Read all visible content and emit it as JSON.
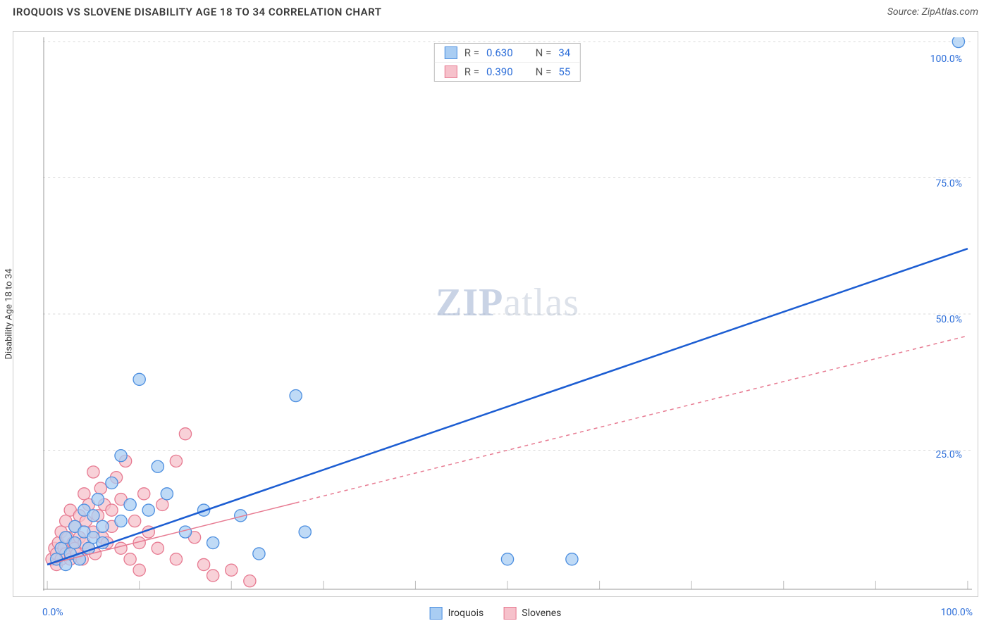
{
  "header": {
    "title": "IROQUOIS VS SLOVENE DISABILITY AGE 18 TO 34 CORRELATION CHART",
    "source": "Source: ZipAtlas.com"
  },
  "ylabel": "Disability Age 18 to 34",
  "watermark_zip": "ZIP",
  "watermark_atlas": "atlas",
  "chart": {
    "type": "scatter",
    "xlim": [
      0,
      100
    ],
    "ylim": [
      0,
      100
    ],
    "x_ticks": [
      0,
      50,
      100
    ],
    "y_ticks": [
      25,
      50,
      75,
      100
    ],
    "y_tick_labels": [
      "25.0%",
      "50.0%",
      "75.0%",
      "100.0%"
    ],
    "x_tick_labels": [
      "0.0%",
      "100.0%"
    ],
    "grid_color": "#d8d8d8",
    "axis_tick_color": "#bdbdbd",
    "background_color": "#ffffff",
    "series": [
      {
        "name": "Iroquois",
        "R": "0.630",
        "N": "34",
        "color_fill": "#a9cdf3",
        "color_stroke": "#4d8fe0",
        "trend_color": "#1c5dd2",
        "trend_width": 2.5,
        "trend_dash": "none",
        "trend": {
          "x1": 0,
          "y1": 4,
          "x2": 100,
          "y2": 62
        },
        "points": [
          [
            1,
            5
          ],
          [
            1.5,
            7
          ],
          [
            2,
            4
          ],
          [
            2,
            9
          ],
          [
            2.5,
            6
          ],
          [
            3,
            8
          ],
          [
            3,
            11
          ],
          [
            3.5,
            5
          ],
          [
            4,
            10
          ],
          [
            4,
            14
          ],
          [
            4.5,
            7
          ],
          [
            5,
            13
          ],
          [
            5,
            9
          ],
          [
            5.5,
            16
          ],
          [
            6,
            11
          ],
          [
            6,
            8
          ],
          [
            7,
            19
          ],
          [
            8,
            24
          ],
          [
            8,
            12
          ],
          [
            9,
            15
          ],
          [
            10,
            38
          ],
          [
            11,
            14
          ],
          [
            12,
            22
          ],
          [
            13,
            17
          ],
          [
            15,
            10
          ],
          [
            17,
            14
          ],
          [
            18,
            8
          ],
          [
            21,
            13
          ],
          [
            23,
            6
          ],
          [
            27,
            35
          ],
          [
            28,
            10
          ],
          [
            50,
            5
          ],
          [
            57,
            5
          ],
          [
            99,
            100
          ]
        ]
      },
      {
        "name": "Slovenes",
        "R": "0.390",
        "N": "55",
        "color_fill": "#f6c1cb",
        "color_stroke": "#e77b92",
        "trend_color": "#e77b92",
        "trend_width": 1.5,
        "trend_dash": "5,5",
        "trend_solid_until": 27,
        "trend": {
          "x1": 0,
          "y1": 4,
          "x2": 100,
          "y2": 46
        },
        "points": [
          [
            0.5,
            5
          ],
          [
            0.8,
            7
          ],
          [
            1,
            4
          ],
          [
            1,
            6
          ],
          [
            1.2,
            8
          ],
          [
            1.5,
            5
          ],
          [
            1.5,
            10
          ],
          [
            1.8,
            7
          ],
          [
            2,
            6
          ],
          [
            2,
            12
          ],
          [
            2.2,
            9
          ],
          [
            2.5,
            5
          ],
          [
            2.5,
            14
          ],
          [
            2.8,
            8
          ],
          [
            3,
            11
          ],
          [
            3,
            7
          ],
          [
            3.2,
            6
          ],
          [
            3.5,
            13
          ],
          [
            3.5,
            9
          ],
          [
            3.8,
            5
          ],
          [
            4,
            8
          ],
          [
            4,
            17
          ],
          [
            4.2,
            12
          ],
          [
            4.5,
            7
          ],
          [
            4.5,
            15
          ],
          [
            5,
            10
          ],
          [
            5,
            21
          ],
          [
            5.2,
            6
          ],
          [
            5.5,
            13
          ],
          [
            5.8,
            18
          ],
          [
            6,
            9
          ],
          [
            6.2,
            15
          ],
          [
            6.5,
            8
          ],
          [
            7,
            14
          ],
          [
            7,
            11
          ],
          [
            7.5,
            20
          ],
          [
            8,
            7
          ],
          [
            8,
            16
          ],
          [
            8.5,
            23
          ],
          [
            9,
            5
          ],
          [
            9.5,
            12
          ],
          [
            10,
            8
          ],
          [
            10,
            3
          ],
          [
            10.5,
            17
          ],
          [
            11,
            10
          ],
          [
            12,
            7
          ],
          [
            12.5,
            15
          ],
          [
            14,
            23
          ],
          [
            14,
            5
          ],
          [
            15,
            28
          ],
          [
            16,
            9
          ],
          [
            17,
            4
          ],
          [
            18,
            2
          ],
          [
            20,
            3
          ],
          [
            22,
            1
          ]
        ]
      }
    ]
  },
  "legend_bottom": {
    "series1": "Iroquois",
    "series2": "Slovenes"
  },
  "legend_top_labels": {
    "R": "R =",
    "N": "N ="
  }
}
